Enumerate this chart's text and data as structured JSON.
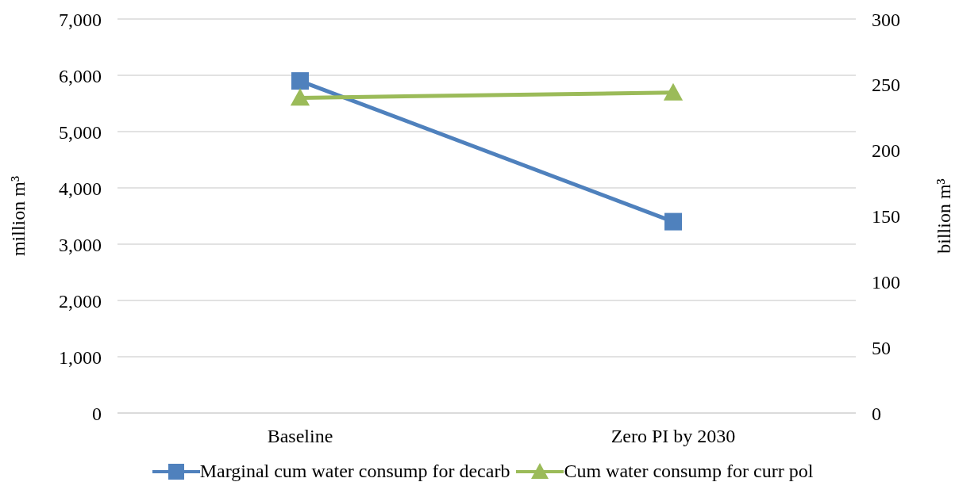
{
  "chart_data": {
    "type": "line",
    "categories": [
      "Baseline",
      "Zero PI by 2030"
    ],
    "series": [
      {
        "name": "Marginal cum water consump for decarb",
        "color": "#4f81bd",
        "marker": "square",
        "values": [
          5900,
          3400
        ]
      },
      {
        "name": "Cum water consump for curr pol",
        "color": "#9bbb59",
        "marker": "triangle",
        "axis": "y2",
        "values": [
          240,
          244
        ]
      }
    ],
    "ylabel": "million m³",
    "y2label": "billion m³",
    "ylim": [
      0,
      7000
    ],
    "yticks": [
      0,
      {
        "value": 1000,
        "label": "1,000"
      },
      {
        "value": 2000,
        "label": "2,000"
      },
      {
        "value": 3000,
        "label": "3,000"
      },
      {
        "value": 4000,
        "label": "4,000"
      },
      {
        "value": 5000,
        "label": "5,000"
      },
      {
        "value": 6000,
        "label": "6,000"
      },
      {
        "value": 7000,
        "label": "7,000"
      }
    ],
    "y2lim": [
      0,
      300
    ],
    "y2ticks": [
      0,
      50,
      100,
      150,
      200,
      250,
      300
    ],
    "grid": "y",
    "legend": "bottom"
  }
}
